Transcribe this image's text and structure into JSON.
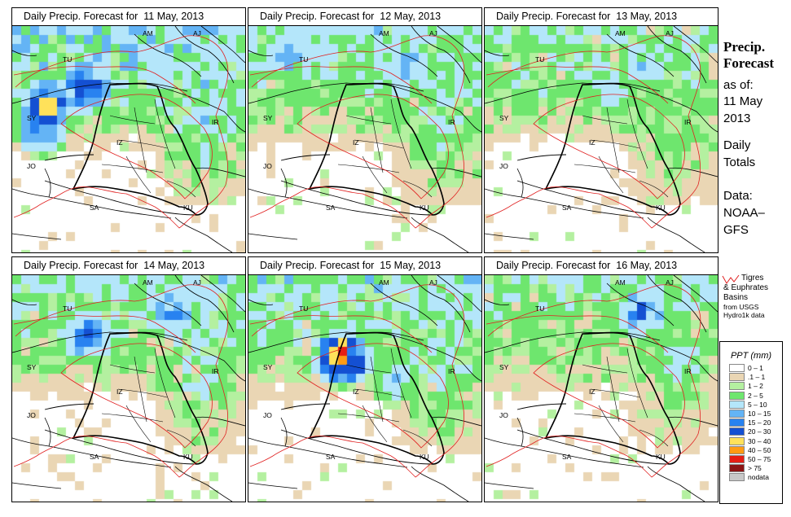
{
  "panels": [
    {
      "title_prefix": "Daily Precip. Forecast for",
      "date": "11 May, 2013",
      "wetness": 1.35,
      "seed": 11,
      "hotspots": [
        {
          "loc": "turkey_w",
          "v": 42
        },
        {
          "loc": "turkey_c",
          "v": 33
        },
        {
          "loc": "syria_w",
          "v": 22
        }
      ]
    },
    {
      "title_prefix": "Daily Precip. Forecast for",
      "date": "12 May, 2013",
      "wetness": 1.0,
      "seed": 12,
      "hotspots": [
        {
          "loc": "turkey_nw",
          "v": 16
        },
        {
          "loc": "armenia",
          "v": 14
        }
      ]
    },
    {
      "title_prefix": "Daily Precip. Forecast for",
      "date": "13 May, 2013",
      "wetness": 0.75,
      "seed": 13,
      "hotspots": [
        {
          "loc": "armenia",
          "v": 12
        },
        {
          "loc": "turkey_e",
          "v": 10
        }
      ]
    },
    {
      "title_prefix": "Daily Precip. Forecast for",
      "date": "14 May, 2013",
      "wetness": 0.95,
      "seed": 14,
      "hotspots": [
        {
          "loc": "turkey_c",
          "v": 24
        },
        {
          "loc": "armenia",
          "v": 20
        }
      ]
    },
    {
      "title_prefix": "Daily Precip. Forecast for",
      "date": "15 May, 2013",
      "wetness": 1.05,
      "seed": 15,
      "hotspots": [
        {
          "loc": "turkey_se",
          "v": 55
        },
        {
          "loc": "iraq_n",
          "v": 12
        }
      ]
    },
    {
      "title_prefix": "Daily Precip. Forecast for",
      "date": "16 May, 2013",
      "wetness": 0.7,
      "seed": 16,
      "hotspots": [
        {
          "loc": "armenia",
          "v": 22
        },
        {
          "loc": "iran_nw",
          "v": 12
        }
      ]
    }
  ],
  "map_labels": {
    "am": "AM",
    "aj": "AJ",
    "tu": "TU",
    "sy": "SY",
    "ir": "IR",
    "iz": "IZ",
    "jo": "JO",
    "sa": "SA",
    "ku": "KU"
  },
  "side": {
    "title_line1": "Precip.",
    "title_line2": "Forecast",
    "asof": "as of:",
    "date_line1": "11 May",
    "date_line2": "2013",
    "daily_line1": "Daily",
    "daily_line2": "Totals",
    "data_line1": "Data:",
    "data_line2": "NOAA–",
    "data_line3": "GFS"
  },
  "basin_key": {
    "line1": "Tigres",
    "line2": "& Euphrates",
    "line3": "Basins",
    "line4": "from USGS",
    "line5": "Hydro1k data",
    "color": "#e02020"
  },
  "legend": {
    "title": "PPT (mm)",
    "items": [
      {
        "label": "0 – 1",
        "color": "#ffffff"
      },
      {
        "label": ".1 – 1",
        "color": "#ead6b4"
      },
      {
        "label": "1 – 2",
        "color": "#b4f0a0"
      },
      {
        "label": "2 – 5",
        "color": "#6ee66e"
      },
      {
        "label": "5 – 10",
        "color": "#b4e6fa"
      },
      {
        "label": "10 – 15",
        "color": "#64b4f5"
      },
      {
        "label": "15 – 20",
        "color": "#2882f0"
      },
      {
        "label": "20 – 30",
        "color": "#1450d2"
      },
      {
        "label": "30 – 40",
        "color": "#ffe15a"
      },
      {
        "label": "40 – 50",
        "color": "#ff9b14"
      },
      {
        "label": "50 – 75",
        "color": "#e61e14"
      },
      {
        "label": "> 75",
        "color": "#8c1414"
      },
      {
        "label": "nodata",
        "color": "#c8c8c8"
      }
    ]
  }
}
